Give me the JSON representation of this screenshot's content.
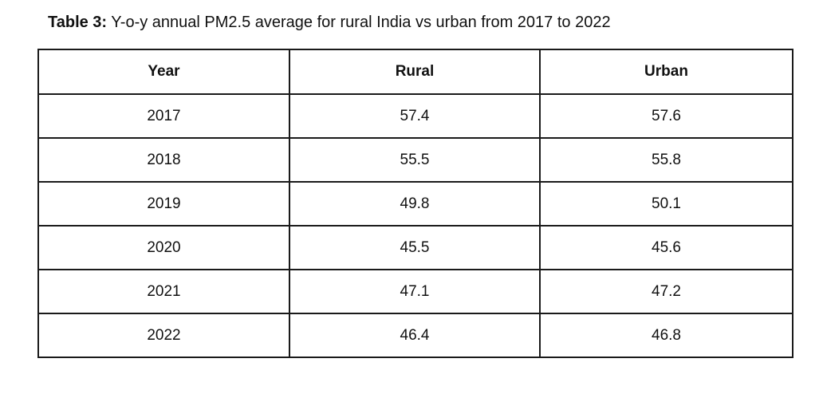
{
  "caption": {
    "label": "Table 3:",
    "text": " Y-o-y annual PM2.5 average for rural India vs urban from 2017 to 2022"
  },
  "table": {
    "headers": [
      "Year",
      "Rural",
      "Urban"
    ],
    "rows": [
      [
        "2017",
        "57.4",
        "57.6"
      ],
      [
        "2018",
        "55.5",
        "55.8"
      ],
      [
        "2019",
        "49.8",
        "50.1"
      ],
      [
        "2020",
        "45.5",
        "45.6"
      ],
      [
        "2021",
        "47.1",
        "47.2"
      ],
      [
        "2022",
        "46.4",
        "46.8"
      ]
    ]
  }
}
